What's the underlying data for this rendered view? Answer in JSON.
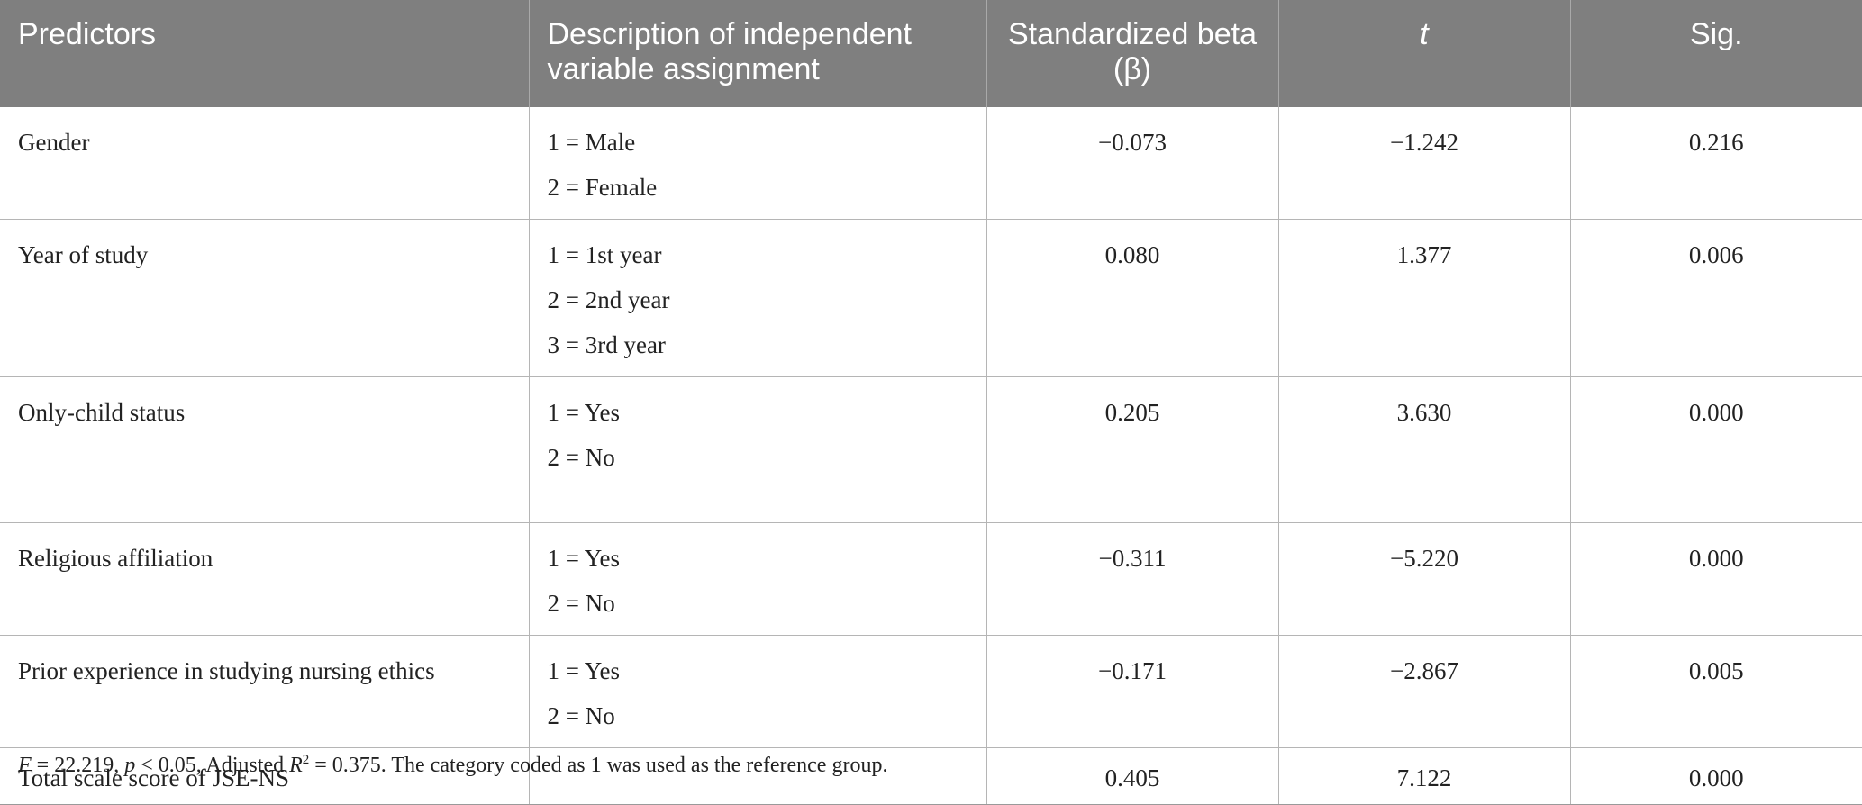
{
  "table": {
    "headers": {
      "predictors": "Predictors",
      "description": "Description of independent variable assignment",
      "beta": "Standardized beta (β)",
      "t": "t",
      "sig": "Sig."
    },
    "rows": [
      {
        "predictor": "Gender",
        "assignment": [
          "1 = Male",
          "2 = Female"
        ],
        "beta": "−0.073",
        "t": "−1.242",
        "sig": "0.216"
      },
      {
        "predictor": "Year of study",
        "assignment": [
          "1 = 1st year",
          "2 = 2nd year",
          "3 = 3rd year"
        ],
        "beta": "0.080",
        "t": "1.377",
        "sig": "0.006"
      },
      {
        "predictor": "Only-child status",
        "assignment": [
          "1 = Yes",
          "2 = No"
        ],
        "beta": "0.205",
        "t": "3.630",
        "sig": "0.000"
      },
      {
        "predictor": "Religious affiliation",
        "assignment": [
          "1 = Yes",
          "2 = No"
        ],
        "beta": "−0.311",
        "t": "−5.220",
        "sig": "0.000"
      },
      {
        "predictor": "Prior experience in studying nursing ethics",
        "assignment": [
          "1 = Yes",
          "2 = No"
        ],
        "beta": "−0.171",
        "t": "−2.867",
        "sig": "0.005"
      },
      {
        "predictor": "Total scale score of JSE-NS",
        "assignment": [],
        "beta": "0.405",
        "t": "7.122",
        "sig": "0.000"
      }
    ]
  },
  "footnote": {
    "f_label": "F",
    "f_value": " = 22.219, ",
    "p_label": "p",
    "p_value": " < 0.05, Adjusted ",
    "r_label": "R",
    "r_sup": "2",
    "r_value": " = 0.375. The category coded as 1 was used as the reference group."
  }
}
